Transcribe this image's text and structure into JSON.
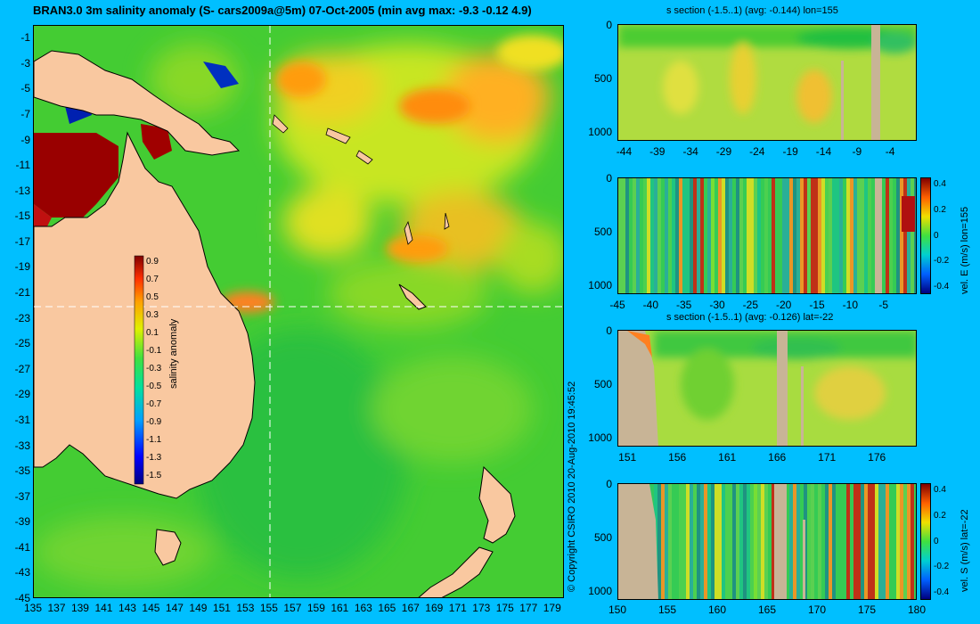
{
  "map": {
    "title": "BRAN3.0 3m salinity anomaly (S- cars2009a@5m) 07-Oct-2005 (min avg max: -9.3 -0.12 4.9)",
    "x_ticks": [
      "135",
      "137",
      "139",
      "141",
      "143",
      "145",
      "147",
      "149",
      "151",
      "153",
      "155",
      "157",
      "159",
      "161",
      "163",
      "165",
      "167",
      "169",
      "171",
      "173",
      "175",
      "177",
      "179"
    ],
    "y_ticks": [
      "-1",
      "-3",
      "-5",
      "-7",
      "-9",
      "-11",
      "-13",
      "-15",
      "-17",
      "-19",
      "-21",
      "-23",
      "-25",
      "-27",
      "-29",
      "-31",
      "-33",
      "-35",
      "-37",
      "-39",
      "-41",
      "-43",
      "-45"
    ],
    "colorbar": {
      "label": "salinity anomaly",
      "ticks": [
        "0.9",
        "0.7",
        "0.5",
        "0.3",
        "0.1",
        "-0.1",
        "-0.3",
        "-0.5",
        "-0.7",
        "-0.9",
        "-1.1",
        "-1.3",
        "-1.5"
      ],
      "range": [
        -1.5,
        0.9
      ]
    },
    "crosshair": {
      "lon": 155,
      "lat": -22
    },
    "copyright": "© Copyright CSIRO 2010  20-Aug-2010 19:45:52"
  },
  "panels": [
    {
      "title": "s section (-1.5..1) (avg: -0.144) lon=155",
      "x_ticks": [
        "-44",
        "-39",
        "-34",
        "-29",
        "-24",
        "-19",
        "-14",
        "-9",
        "-4"
      ],
      "y_ticks": [
        "0",
        "500",
        "1000"
      ],
      "side_label": "",
      "colorbar_ticks": []
    },
    {
      "title": "",
      "x_ticks": [
        "-45",
        "-40",
        "-35",
        "-30",
        "-25",
        "-20",
        "-15",
        "-10",
        "-5"
      ],
      "y_ticks": [
        "0",
        "500",
        "1000"
      ],
      "side_label": "vel. E (m/s) lon=155",
      "colorbar_ticks": [
        "0.4",
        "0.2",
        "0",
        "-0.2",
        "-0.4"
      ]
    },
    {
      "title": "s section (-1.5..1) (avg: -0.126) lat=-22",
      "x_ticks": [
        "151",
        "156",
        "161",
        "166",
        "171",
        "176"
      ],
      "y_ticks": [
        "0",
        "500",
        "1000"
      ],
      "side_label": "",
      "colorbar_ticks": []
    },
    {
      "title": "",
      "x_ticks": [
        "150",
        "155",
        "160",
        "165",
        "170",
        "175",
        "180"
      ],
      "y_ticks": [
        "0",
        "500",
        "1000"
      ],
      "side_label": "vel. S (m/s) lat=-22",
      "colorbar_ticks": [
        "0.4",
        "0.2",
        "0",
        "-0.2",
        "-0.4"
      ]
    }
  ],
  "colors": {
    "background": "#00bfff",
    "land": "#d2b48c",
    "ocean_base": "#3cc83c"
  }
}
